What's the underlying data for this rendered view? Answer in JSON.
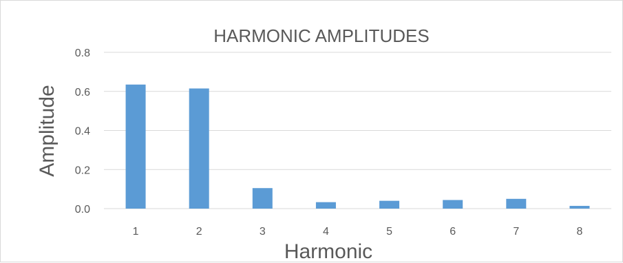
{
  "chart_data": {
    "type": "bar",
    "title": "HARMONIC AMPLITUDES",
    "xlabel": "Harmonic",
    "ylabel": "Amplitude",
    "categories": [
      "1",
      "2",
      "3",
      "4",
      "5",
      "6",
      "7",
      "8"
    ],
    "series": [
      {
        "values": [
          0.635,
          0.615,
          0.105,
          0.033,
          0.04,
          0.044,
          0.05,
          0.014
        ]
      }
    ],
    "ylim": [
      0,
      0.8
    ],
    "yticks": [
      "0.0",
      "0.2",
      "0.4",
      "0.6",
      "0.8"
    ],
    "grid": true,
    "legend": "none",
    "bar_color": "#5B9BD5"
  }
}
